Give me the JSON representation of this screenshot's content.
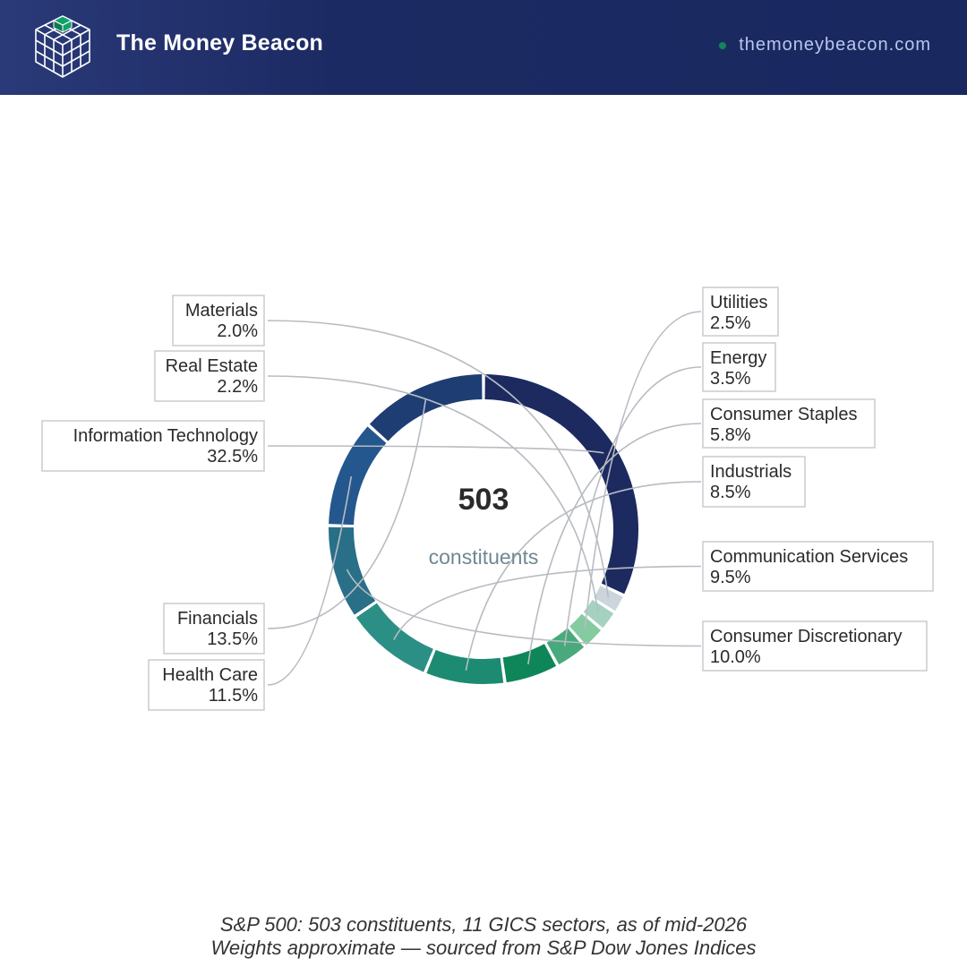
{
  "header": {
    "brand": "The Money Beacon",
    "site": "themoneybeacon.com",
    "logo_icon": "cube-grid-icon"
  },
  "colors": {
    "header_bg": "#1c2a63",
    "accent_green": "#12855a",
    "label_text": "#2b2b2b",
    "center_subtext": "#6f8893"
  },
  "chart_data": {
    "type": "donut",
    "center_value": "503",
    "center_label": "constituents",
    "slices": [
      {
        "name": "Information Technology",
        "value": 32.5,
        "label": "32.5%",
        "color": "#1c2a60"
      },
      {
        "name": "Materials",
        "value": 2.0,
        "label": "2.0%",
        "color": "#ccd5dc"
      },
      {
        "name": "Real Estate",
        "value": 2.2,
        "label": "2.2%",
        "color": "#a5d1c0"
      },
      {
        "name": "Utilities",
        "value": 2.5,
        "label": "2.5%",
        "color": "#85cba2"
      },
      {
        "name": "Energy",
        "value": 3.5,
        "label": "3.5%",
        "color": "#48aa7c"
      },
      {
        "name": "Consumer Staples",
        "value": 5.8,
        "label": "5.8%",
        "color": "#0f855a"
      },
      {
        "name": "Industrials",
        "value": 8.5,
        "label": "8.5%",
        "color": "#1c8b72"
      },
      {
        "name": "Communication Services",
        "value": 9.5,
        "label": "9.5%",
        "color": "#2c8f86"
      },
      {
        "name": "Consumer Discretionary",
        "value": 10.0,
        "label": "10.0%",
        "color": "#296f88"
      },
      {
        "name": "Health Care",
        "value": 11.5,
        "label": "11.5%",
        "color": "#24578e"
      },
      {
        "name": "Financials",
        "value": 13.5,
        "label": "13.5%",
        "color": "#1e3d73"
      }
    ]
  },
  "footer": {
    "line1": "S&P 500: 503 constituents, 11 GICS sectors, as of mid-2026",
    "line2": "Weights approximate — sourced from S&P Dow Jones Indices"
  }
}
